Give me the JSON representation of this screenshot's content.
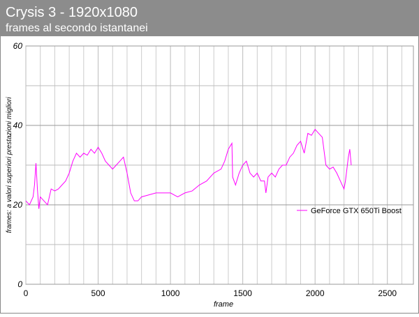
{
  "chart_data": {
    "type": "line",
    "title": "Crysis 3 - 1920x1080",
    "subtitle": "frames al secondo istantanei",
    "x_label": "frame",
    "y_label": "frames: a valori superiori prestazioni migliori",
    "xlim": [
      0,
      2680
    ],
    "ylim": [
      0,
      60
    ],
    "xticks": [
      0,
      500,
      1000,
      1500,
      2000,
      2500
    ],
    "yticks": [
      0,
      20,
      40,
      60
    ],
    "x_minor_ticks": [
      100,
      200,
      300,
      400,
      600,
      700,
      800,
      900,
      1100,
      1200,
      1300,
      1400,
      1600,
      1700,
      1800,
      1900,
      2100,
      2200,
      2300,
      2400,
      2600
    ],
    "y_minor_ticks": [
      10,
      30,
      50
    ],
    "grid": true,
    "legend": "right",
    "x": [
      0,
      25,
      50,
      60,
      70,
      80,
      90,
      100,
      125,
      150,
      175,
      200,
      225,
      250,
      275,
      300,
      325,
      350,
      375,
      400,
      425,
      450,
      475,
      500,
      525,
      550,
      575,
      600,
      625,
      650,
      675,
      700,
      725,
      750,
      775,
      800,
      850,
      900,
      950,
      1000,
      1050,
      1100,
      1150,
      1200,
      1250,
      1300,
      1350,
      1375,
      1400,
      1425,
      1430,
      1450,
      1475,
      1500,
      1525,
      1550,
      1575,
      1600,
      1625,
      1650,
      1660,
      1675,
      1700,
      1725,
      1750,
      1775,
      1800,
      1825,
      1850,
      1875,
      1900,
      1925,
      1950,
      1975,
      2000,
      2025,
      2050,
      2075,
      2100,
      2125,
      2150,
      2175,
      2200,
      2210,
      2230,
      2240,
      2250
    ],
    "series": [
      {
        "name": "GeForce GTX 650Ti Boost",
        "color": "#ff00ff",
        "values": [
          21,
          20,
          22,
          25,
          30.5,
          24,
          19,
          22,
          21,
          20,
          24,
          23.5,
          24,
          25,
          26,
          28,
          31,
          33,
          32,
          33,
          32.5,
          34,
          33,
          34.5,
          33,
          31,
          30,
          29,
          30,
          31,
          32,
          28,
          23,
          21,
          21,
          22,
          22.5,
          23,
          23,
          23,
          22,
          23,
          23.5,
          25,
          26,
          28,
          29,
          31,
          34,
          35.5,
          27,
          25,
          28,
          30,
          31,
          28,
          27,
          28,
          26,
          26,
          23,
          27,
          28,
          27,
          29,
          30,
          30,
          32,
          33,
          35,
          36,
          33,
          38,
          37.5,
          39,
          38,
          37,
          30,
          29,
          29.5,
          28,
          26,
          24,
          26,
          32,
          34,
          30
        ]
      }
    ]
  }
}
